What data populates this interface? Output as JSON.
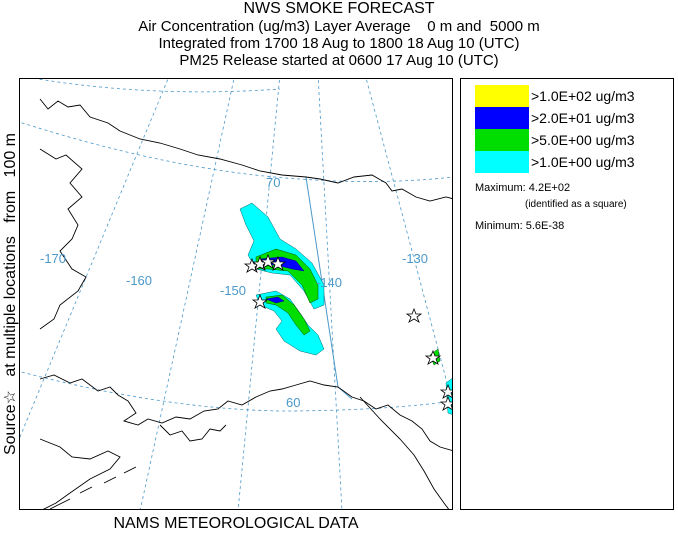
{
  "title": {
    "main": "NWS SMOKE FORECAST",
    "line1": "Air Concentration (ug/m3) Layer Average    0 m and  5000 m",
    "line2": "Integrated from 1700 18 Aug to 1800 18 Aug 10 (UTC)",
    "line3": "PM25 Release started at 0600 17 Aug 10 (UTC)"
  },
  "side_label": "Source☆   at multiple locations   from   100 m",
  "footer": "NAMS METEOROLOGICAL DATA",
  "legend": {
    "items": [
      {
        "label": ">1.0E+02 ug/m3",
        "color": "#ffff00"
      },
      {
        "label": ">2.0E+01 ug/m3",
        "color": "#0000ff"
      },
      {
        "label": ">5.0E+00 ug/m3",
        "color": "#00dd00"
      },
      {
        "label": ">1.0E+00 ug/m3",
        "color": "#00ffff"
      }
    ],
    "maximum": "Maximum: 4.2E+02",
    "maximum_note": "(identified as a square)",
    "minimum": "Minimum: 5.6E-38"
  },
  "map_labels": {
    "lat70": "70",
    "lat60": "60",
    "lon170": "-170",
    "lon160": "-160",
    "lon150": "-150",
    "lon140": "-140",
    "lon130": "-130"
  },
  "colors": {
    "graticule": "#4b98c9",
    "coastline": "#000000",
    "border": "#4b98c9"
  }
}
